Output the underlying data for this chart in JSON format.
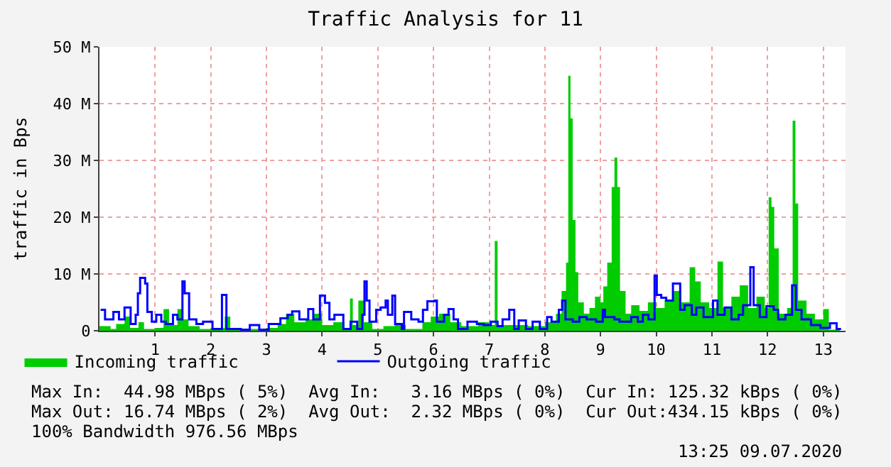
{
  "chart_data": {
    "type": "area",
    "title": "Traffic Analysis for 11",
    "ylabel": "traffic in Bps",
    "xlim": [
      0,
      13.4
    ],
    "xticks": [
      1,
      2,
      3,
      4,
      5,
      6,
      7,
      8,
      9,
      10,
      11,
      12,
      13
    ],
    "ylim": [
      0,
      50000000.0
    ],
    "yticks": [
      {
        "value": 0,
        "label": "0"
      },
      {
        "value": 10000000.0,
        "label": "10 M"
      },
      {
        "value": 20000000.0,
        "label": "20 M"
      },
      {
        "value": 30000000.0,
        "label": "30 M"
      },
      {
        "value": 40000000.0,
        "label": "40 M"
      },
      {
        "value": 50000000.0,
        "label": "50 M"
      }
    ],
    "grid": true,
    "legend": "bottom",
    "series": [
      {
        "name": "Incoming traffic",
        "color": "#00cc00",
        "x": [
          0.0,
          0.2,
          0.3,
          0.45,
          0.55,
          0.7,
          0.8,
          1.0,
          1.15,
          1.25,
          1.4,
          1.5,
          1.6,
          1.8,
          2.0,
          2.25,
          2.35,
          2.7,
          3.0,
          3.2,
          3.35,
          3.5,
          3.7,
          3.85,
          4.0,
          4.2,
          4.4,
          4.5,
          4.55,
          4.65,
          4.75,
          4.9,
          5.1,
          5.3,
          5.5,
          5.8,
          5.95,
          6.1,
          6.3,
          6.5,
          6.8,
          7.0,
          7.1,
          7.15,
          7.4,
          7.7,
          8.0,
          8.2,
          8.3,
          8.38,
          8.42,
          8.46,
          8.5,
          8.55,
          8.6,
          8.7,
          8.8,
          8.9,
          9.0,
          9.05,
          9.12,
          9.2,
          9.25,
          9.3,
          9.35,
          9.45,
          9.55,
          9.7,
          9.85,
          10.0,
          10.15,
          10.3,
          10.45,
          10.6,
          10.7,
          10.8,
          10.95,
          11.1,
          11.2,
          11.35,
          11.5,
          11.65,
          11.8,
          11.95,
          12.02,
          12.07,
          12.12,
          12.2,
          12.35,
          12.45,
          12.5,
          12.55,
          12.7,
          12.85,
          13.0,
          13.1,
          13.3
        ],
        "values": [
          800000.0,
          300000.0,
          1200000.0,
          2500000.0,
          500000.0,
          1500000.0,
          300000.0,
          500000.0,
          3800000.0,
          1000000.0,
          3800000.0,
          2000000.0,
          800000.0,
          300000.0,
          500000.0,
          2500000.0,
          300000.0,
          300000.0,
          500000.0,
          1200000.0,
          3000000.0,
          1500000.0,
          2000000.0,
          3000000.0,
          1000000.0,
          1500000.0,
          500000.0,
          5700000.0,
          1000000.0,
          5300000.0,
          1500000.0,
          300000.0,
          800000.0,
          1000000.0,
          300000.0,
          1500000.0,
          2500000.0,
          3000000.0,
          1500000.0,
          800000.0,
          1500000.0,
          1000000.0,
          15800000.0,
          1000000.0,
          1000000.0,
          800000.0,
          1500000.0,
          3000000.0,
          7000000.0,
          12000000.0,
          44900000.0,
          37400000.0,
          19500000.0,
          10300000.0,
          5000000.0,
          3000000.0,
          4000000.0,
          6000000.0,
          5000000.0,
          7800000.0,
          12000000.0,
          25300000.0,
          30500000.0,
          25300000.0,
          7000000.0,
          3000000.0,
          4500000.0,
          3500000.0,
          5000000.0,
          4000000.0,
          5500000.0,
          7000000.0,
          5000000.0,
          11200000.0,
          8700000.0,
          5000000.0,
          4000000.0,
          12200000.0,
          4000000.0,
          6000000.0,
          8000000.0,
          4000000.0,
          6000000.0,
          4000000.0,
          23500000.0,
          21800000.0,
          14500000.0,
          3000000.0,
          4000000.0,
          37000000.0,
          22400000.0,
          5300000.0,
          3000000.0,
          2000000.0,
          3800000.0,
          200000.0,
          0
        ]
      },
      {
        "name": "Outgoing traffic",
        "type": "step",
        "color": "#0000ff",
        "x": [
          0.02,
          0.1,
          0.25,
          0.35,
          0.45,
          0.56,
          0.65,
          0.69,
          0.73,
          0.82,
          0.86,
          0.94,
          1.02,
          1.11,
          1.19,
          1.32,
          1.4,
          1.49,
          1.53,
          1.61,
          1.74,
          1.86,
          2.03,
          2.2,
          2.28,
          2.54,
          2.7,
          2.87,
          3.04,
          3.25,
          3.38,
          3.46,
          3.59,
          3.75,
          3.84,
          3.96,
          4.05,
          4.13,
          4.22,
          4.38,
          4.51,
          4.63,
          4.72,
          4.76,
          4.8,
          4.85,
          4.97,
          5.05,
          5.14,
          5.18,
          5.26,
          5.31,
          5.43,
          5.47,
          5.6,
          5.73,
          5.81,
          5.89,
          6.02,
          6.06,
          6.19,
          6.27,
          6.36,
          6.44,
          6.61,
          6.78,
          6.9,
          7.03,
          7.15,
          7.24,
          7.36,
          7.45,
          7.53,
          7.66,
          7.78,
          7.91,
          8.04,
          8.12,
          8.25,
          8.31,
          8.37,
          8.5,
          8.62,
          8.75,
          8.92,
          9.04,
          9.08,
          9.25,
          9.34,
          9.55,
          9.67,
          9.76,
          9.86,
          9.97,
          10.01,
          10.09,
          10.18,
          10.3,
          10.43,
          10.51,
          10.64,
          10.72,
          10.85,
          11.02,
          11.1,
          11.23,
          11.35,
          11.48,
          11.56,
          11.69,
          11.75,
          11.86,
          11.98,
          12.11,
          12.19,
          12.32,
          12.44,
          12.51,
          12.61,
          12.78,
          12.95,
          13.12,
          13.24,
          13.32
        ],
        "values": [
          3700000.0,
          2000000.0,
          3300000.0,
          2000000.0,
          4100000.0,
          1200000.0,
          2800000.0,
          6600000.0,
          9300000.0,
          8300000.0,
          3300000.0,
          1600000.0,
          2800000.0,
          1600000.0,
          1200000.0,
          2800000.0,
          2000000.0,
          8700000.0,
          6600000.0,
          2000000.0,
          1200000.0,
          1600000.0,
          300000.0,
          6300000.0,
          300000.0,
          200000.0,
          1000000.0,
          200000.0,
          1200000.0,
          2200000.0,
          2800000.0,
          3400000.0,
          2000000.0,
          3800000.0,
          2000000.0,
          6200000.0,
          4900000.0,
          2000000.0,
          2800000.0,
          300000.0,
          1600000.0,
          300000.0,
          2800000.0,
          8700000.0,
          5300000.0,
          1600000.0,
          3700000.0,
          4100000.0,
          5300000.0,
          2800000.0,
          6200000.0,
          1200000.0,
          300000.0,
          3300000.0,
          2000000.0,
          1600000.0,
          3700000.0,
          5200000.0,
          5300000.0,
          1600000.0,
          2800000.0,
          3800000.0,
          2000000.0,
          300000.0,
          1600000.0,
          1200000.0,
          1000000.0,
          1600000.0,
          800000.0,
          2000000.0,
          3700000.0,
          300000.0,
          1800000.0,
          300000.0,
          1600000.0,
          300000.0,
          2400000.0,
          1600000.0,
          3700000.0,
          5300000.0,
          2000000.0,
          1600000.0,
          2400000.0,
          2000000.0,
          1600000.0,
          3700000.0,
          2400000.0,
          2000000.0,
          1600000.0,
          2400000.0,
          1600000.0,
          2800000.0,
          2000000.0,
          9700000.0,
          6300000.0,
          5800000.0,
          5300000.0,
          8300000.0,
          3700000.0,
          4500000.0,
          2800000.0,
          4100000.0,
          2400000.0,
          5300000.0,
          2800000.0,
          4100000.0,
          2000000.0,
          2800000.0,
          4500000.0,
          11200000.0,
          4500000.0,
          2400000.0,
          4300000.0,
          3700000.0,
          2000000.0,
          2800000.0,
          8000000.0,
          3700000.0,
          2000000.0,
          1000000.0,
          500000.0,
          1300000.0,
          300000.0,
          300000.0
        ]
      }
    ],
    "annotations": [
      "Max In:  44.98 MBps ( 5%)  Avg In:   3.16 MBps ( 0%)  Cur In: 125.32 kBps ( 0%)",
      "Max Out: 16.74 MBps ( 2%)  Avg Out:  2.32 MBps ( 0%)  Cur Out:434.15 kBps ( 0%)",
      "100% Bandwidth 976.56 MBps",
      "13:25 09.07.2020"
    ]
  }
}
